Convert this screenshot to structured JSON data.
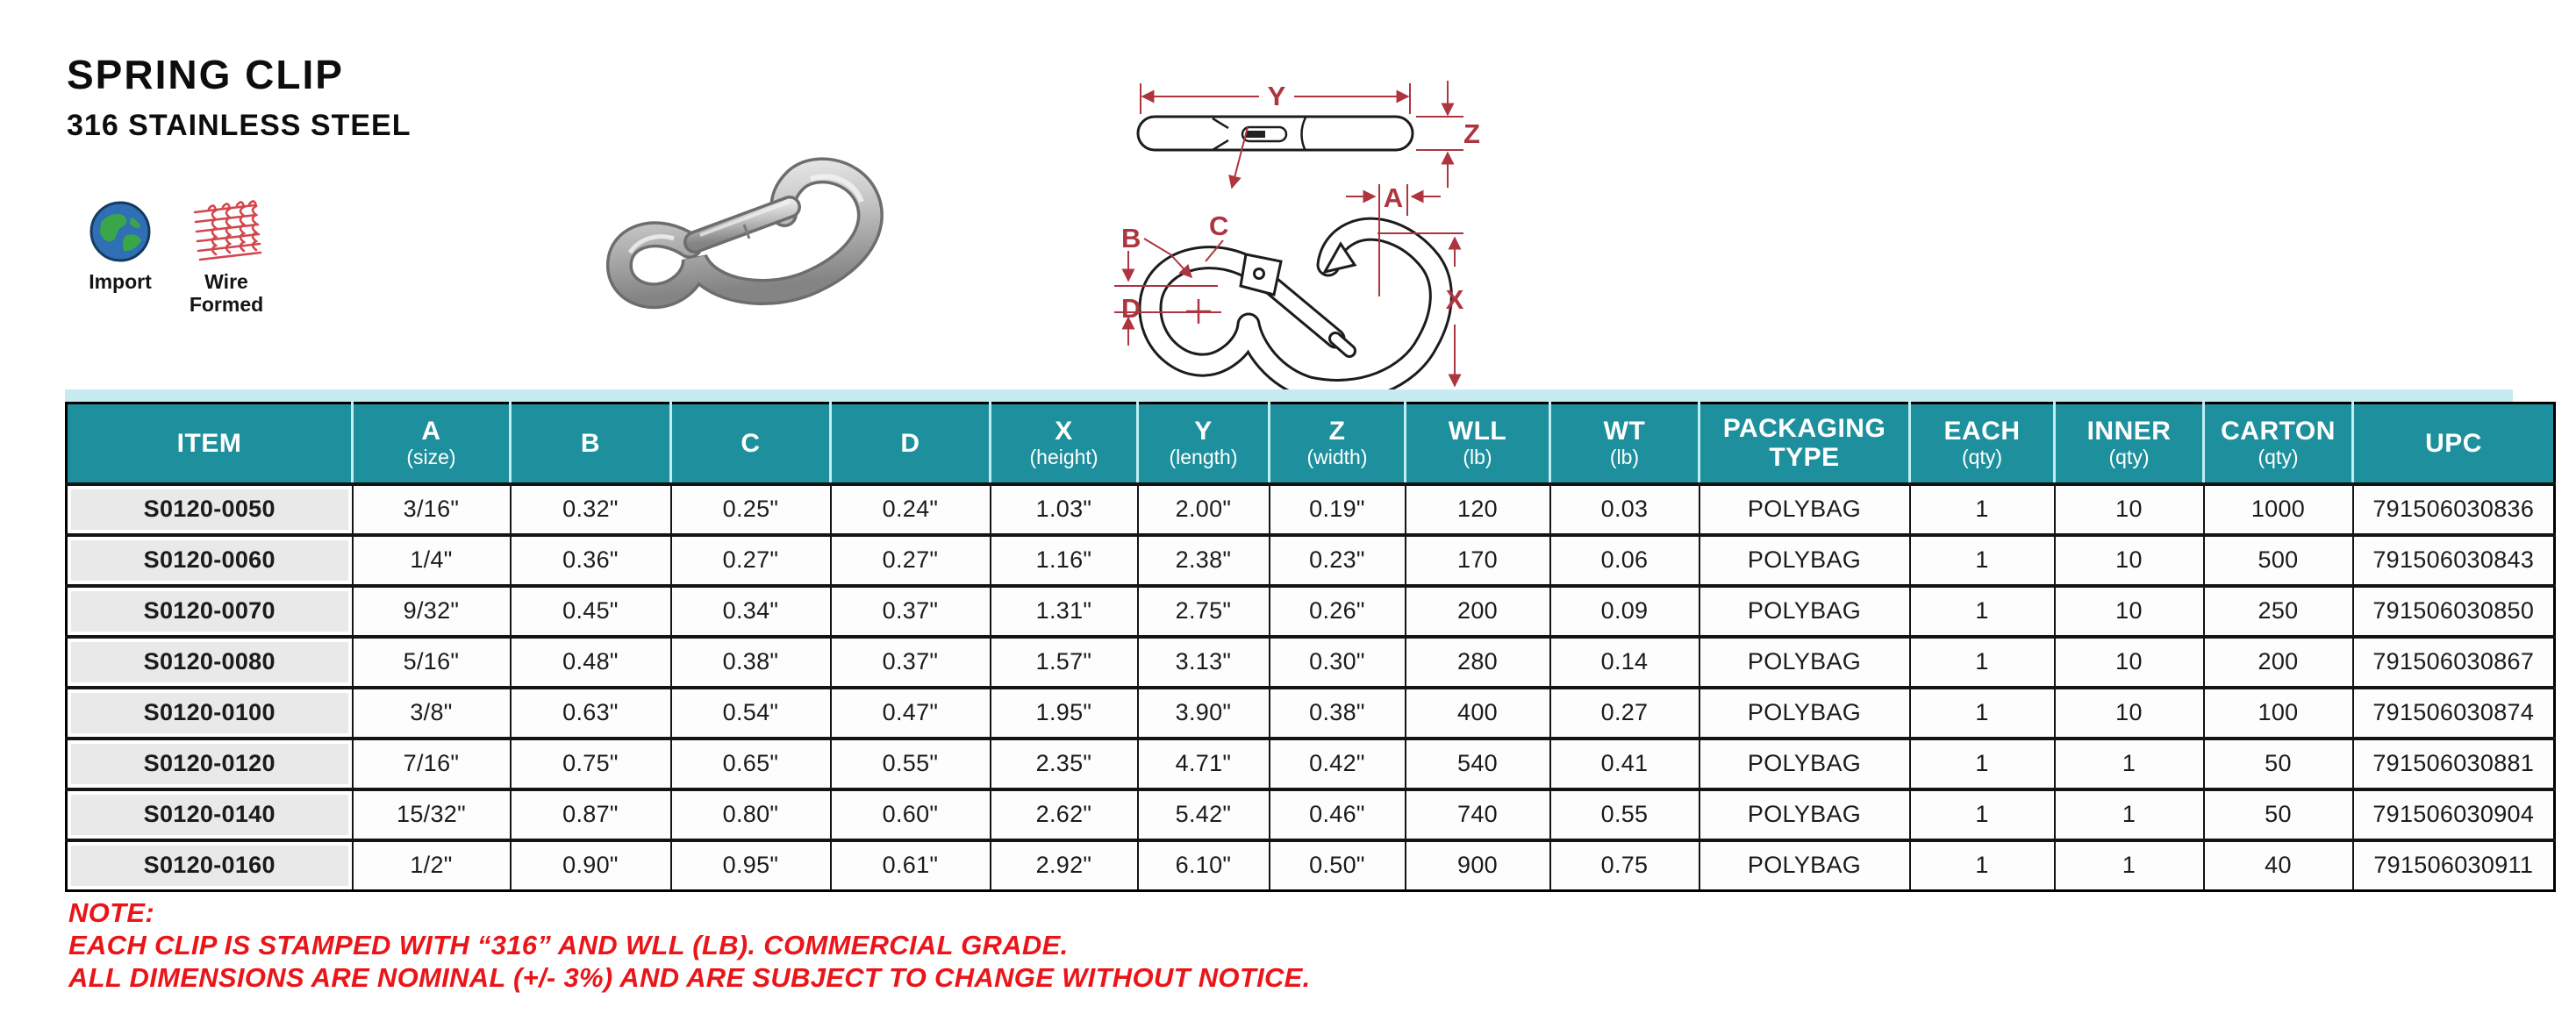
{
  "header": {
    "title": "SPRING CLIP",
    "subtitle": "316 STAINLESS STEEL"
  },
  "badges": {
    "import": {
      "icon": "globe-icon",
      "label": "Import"
    },
    "wire": {
      "icon": "wire-mesh-icon",
      "label": "Wire Formed"
    }
  },
  "diagram": {
    "labels": {
      "Y": "Y",
      "Z": "Z",
      "A": "A",
      "B": "B",
      "C": "C",
      "D": "D",
      "X": "X"
    }
  },
  "table": {
    "columns": [
      {
        "label": "ITEM",
        "sub": ""
      },
      {
        "label": "A",
        "sub": "(size)"
      },
      {
        "label": "B",
        "sub": ""
      },
      {
        "label": "C",
        "sub": ""
      },
      {
        "label": "D",
        "sub": ""
      },
      {
        "label": "X",
        "sub": "(height)"
      },
      {
        "label": "Y",
        "sub": "(length)"
      },
      {
        "label": "Z",
        "sub": "(width)"
      },
      {
        "label": "WLL",
        "sub": "(lb)"
      },
      {
        "label": "WT",
        "sub": "(lb)"
      },
      {
        "label": "PACKAGING",
        "sub": "TYPE"
      },
      {
        "label": "EACH",
        "sub": "(qty)"
      },
      {
        "label": "INNER",
        "sub": "(qty)"
      },
      {
        "label": "CARTON",
        "sub": "(qty)"
      },
      {
        "label": "UPC",
        "sub": ""
      }
    ],
    "rows": [
      [
        "S0120-0050",
        "3/16\"",
        "0.32\"",
        "0.25\"",
        "0.24\"",
        "1.03\"",
        "2.00\"",
        "0.19\"",
        "120",
        "0.03",
        "POLYBAG",
        "1",
        "10",
        "1000",
        "791506030836"
      ],
      [
        "S0120-0060",
        "1/4\"",
        "0.36\"",
        "0.27\"",
        "0.27\"",
        "1.16\"",
        "2.38\"",
        "0.23\"",
        "170",
        "0.06",
        "POLYBAG",
        "1",
        "10",
        "500",
        "791506030843"
      ],
      [
        "S0120-0070",
        "9/32\"",
        "0.45\"",
        "0.34\"",
        "0.37\"",
        "1.31\"",
        "2.75\"",
        "0.26\"",
        "200",
        "0.09",
        "POLYBAG",
        "1",
        "10",
        "250",
        "791506030850"
      ],
      [
        "S0120-0080",
        "5/16\"",
        "0.48\"",
        "0.38\"",
        "0.37\"",
        "1.57\"",
        "3.13\"",
        "0.30\"",
        "280",
        "0.14",
        "POLYBAG",
        "1",
        "10",
        "200",
        "791506030867"
      ],
      [
        "S0120-0100",
        "3/8\"",
        "0.63\"",
        "0.54\"",
        "0.47\"",
        "1.95\"",
        "3.90\"",
        "0.38\"",
        "400",
        "0.27",
        "POLYBAG",
        "1",
        "10",
        "100",
        "791506030874"
      ],
      [
        "S0120-0120",
        "7/16\"",
        "0.75\"",
        "0.65\"",
        "0.55\"",
        "2.35\"",
        "4.71\"",
        "0.42\"",
        "540",
        "0.41",
        "POLYBAG",
        "1",
        "1",
        "50",
        "791506030881"
      ],
      [
        "S0120-0140",
        "15/32\"",
        "0.87\"",
        "0.80\"",
        "0.60\"",
        "2.62\"",
        "5.42\"",
        "0.46\"",
        "740",
        "0.55",
        "POLYBAG",
        "1",
        "1",
        "50",
        "791506030904"
      ],
      [
        "S0120-0160",
        "1/2\"",
        "0.90\"",
        "0.95\"",
        "0.61\"",
        "2.92\"",
        "6.10\"",
        "0.50\"",
        "900",
        "0.75",
        "POLYBAG",
        "1",
        "1",
        "40",
        "791506030911"
      ]
    ]
  },
  "note": {
    "heading": "NOTE:",
    "lines": [
      "EACH CLIP IS STAMPED WITH “316” AND WLL (LB). COMMERCIAL GRADE.",
      "ALL DIMENSIONS ARE NOMINAL (+/- 3%) AND ARE SUBJECT TO CHANGE WITHOUT NOTICE."
    ]
  },
  "colors": {
    "header_teal": "#1e909d",
    "header_strip": "#c7ebf0",
    "note_red": "#ea1519",
    "dimension_red": "#ad3540",
    "item_cell_gray": "#e9e9e9"
  }
}
